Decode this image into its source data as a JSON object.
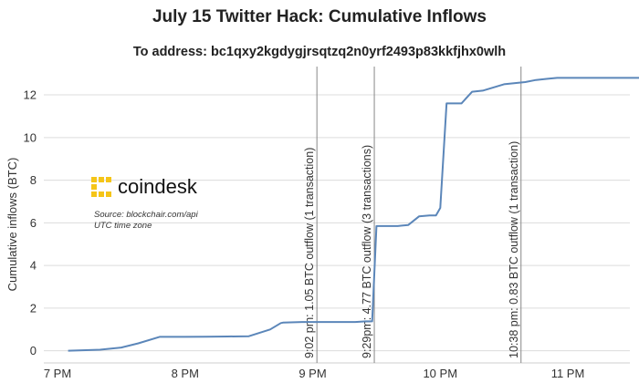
{
  "chart_data": {
    "type": "line",
    "title": "July 15 Twitter Hack: Cumulative Inflows",
    "subtitle": "To address: bc1qxy2kgdygjrsqtzq2n0yrf2493p83kkfjhx0wlh",
    "ylabel": "Cumulative inflows (BTC)",
    "xlabel": "",
    "ylim": [
      -0.4,
      13.2
    ],
    "yticks": [
      0,
      2,
      4,
      6,
      8,
      10,
      12
    ],
    "xticks": [
      "7 PM",
      "8 PM",
      "9 PM",
      "10 PM",
      "11 PM"
    ],
    "grid": "horizontal",
    "series": [
      {
        "color": "#5b86b9",
        "x": [
          "19:05",
          "19:20",
          "19:30",
          "19:38",
          "19:48",
          "20:00",
          "20:10",
          "20:20",
          "20:30",
          "20:40",
          "20:45",
          "20:46",
          "20:55",
          "21:05",
          "21:15",
          "21:20",
          "21:25",
          "21:28",
          "21:30",
          "21:35",
          "21:40",
          "21:42",
          "21:45",
          "21:50",
          "21:55",
          "21:58",
          "22:00",
          "22:03",
          "22:10",
          "22:15",
          "22:20",
          "22:30",
          "22:40",
          "22:45",
          "22:50",
          "22:55",
          "23:00",
          "23:15",
          "23:25",
          "23:35"
        ],
        "values": [
          0,
          0.05,
          0.15,
          0.35,
          0.65,
          0.65,
          0.66,
          0.67,
          0.68,
          1.0,
          1.3,
          1.32,
          1.35,
          1.35,
          1.35,
          1.35,
          1.38,
          1.38,
          5.85,
          5.85,
          5.85,
          5.87,
          5.9,
          6.3,
          6.35,
          6.35,
          6.7,
          11.6,
          11.6,
          12.15,
          12.2,
          12.5,
          12.6,
          12.7,
          12.75,
          12.8,
          12.8,
          12.8,
          12.8,
          12.8
        ]
      }
    ],
    "annotations": [
      {
        "x": "21:02",
        "label": "9:02 pm: 1.05 BTC outflow (1 transaction)"
      },
      {
        "x": "21:29",
        "label": "9:29pm: 4.77 BTC outflow (3 transactions)"
      },
      {
        "x": "22:38",
        "label": "10:38 pm: 0.83 BTC outflow (1 transaction)"
      }
    ],
    "legend": "none"
  },
  "logo": {
    "name": "coindesk"
  },
  "source_note": [
    "Source: blockchair.com/api",
    "UTC time zone"
  ],
  "colors": {
    "line": "#5b86b9",
    "logo_yellow": "#f5c518",
    "grid": "#dcdcdc",
    "event_line": "#888888"
  }
}
